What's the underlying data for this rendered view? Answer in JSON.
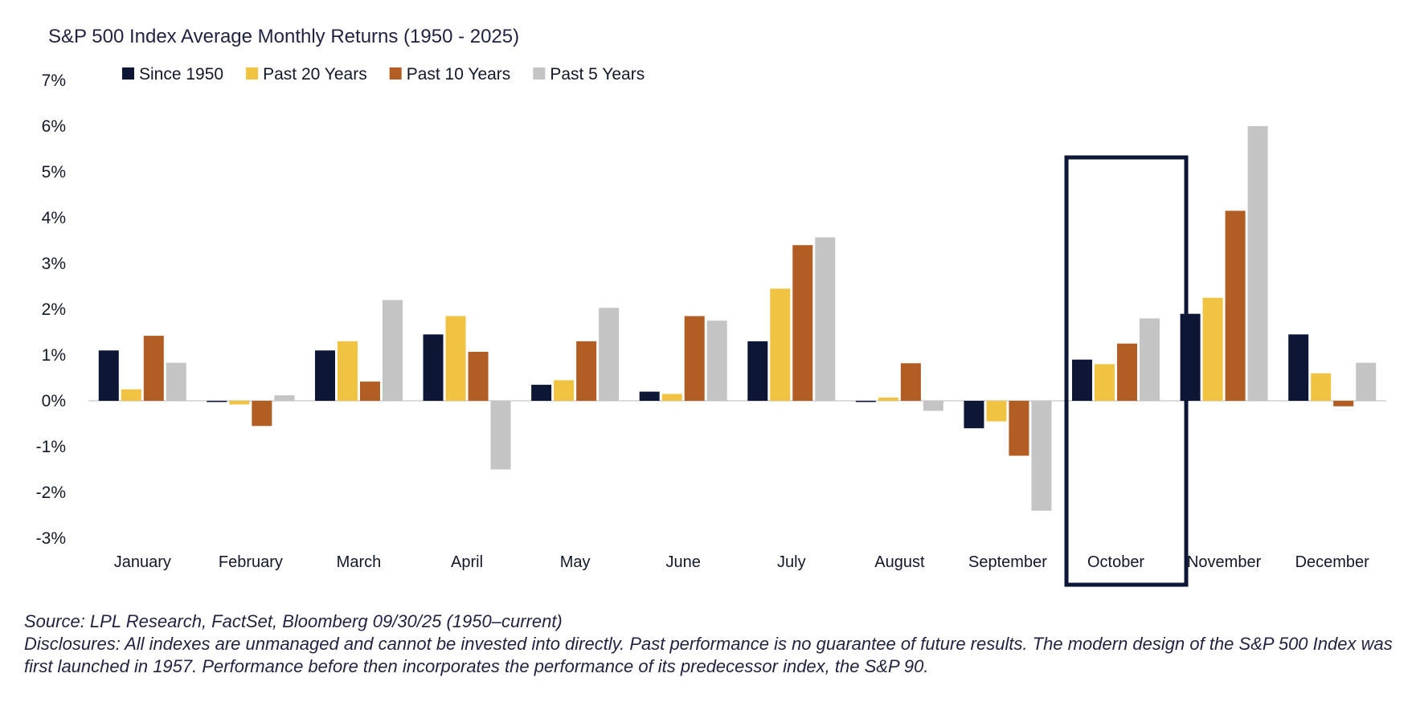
{
  "chart_data": {
    "type": "bar",
    "title": "S&P 500 Index Average Monthly Returns (1950 - 2025)",
    "xlabel": "",
    "ylabel": "",
    "ylim": [
      -3,
      7
    ],
    "y_ticks": [
      "7%",
      "6%",
      "5%",
      "4%",
      "3%",
      "2%",
      "1%",
      "0%",
      "-1%",
      "-2%",
      "-3%"
    ],
    "y_tick_values": [
      7,
      6,
      5,
      4,
      3,
      2,
      1,
      0,
      -1,
      -2,
      -3
    ],
    "categories": [
      "January",
      "February",
      "March",
      "April",
      "May",
      "June",
      "July",
      "August",
      "September",
      "October",
      "November",
      "December"
    ],
    "highlighted_category": "October",
    "legend_position": "top-left",
    "grid": false,
    "series": [
      {
        "name": "Since 1950",
        "color": "#0d1635",
        "values": [
          1.1,
          -0.02,
          1.1,
          1.45,
          0.35,
          0.2,
          1.3,
          -0.02,
          -0.6,
          0.9,
          1.9,
          1.45
        ]
      },
      {
        "name": "Past 20 Years",
        "color": "#f1c342",
        "values": [
          0.25,
          -0.08,
          1.3,
          1.85,
          0.45,
          0.15,
          2.45,
          0.07,
          -0.45,
          0.8,
          2.25,
          0.6
        ]
      },
      {
        "name": "Past 10 Years",
        "color": "#b15d23",
        "values": [
          1.42,
          -0.55,
          0.42,
          1.07,
          1.3,
          1.85,
          3.4,
          0.82,
          -1.2,
          1.25,
          4.15,
          -0.12
        ]
      },
      {
        "name": "Past 5 Years",
        "color": "#c4c4c4",
        "values": [
          0.83,
          0.12,
          2.2,
          -1.5,
          2.03,
          1.75,
          3.57,
          -0.22,
          -2.4,
          1.8,
          6.0,
          0.83
        ]
      }
    ]
  },
  "footnotes": {
    "source": "Source: LPL Research, FactSet, Bloomberg 09/30/25 (1950–current)",
    "disclosures": "Disclosures: All indexes are unmanaged and cannot be invested into directly. Past performance is no guarantee of future results. The modern design of the S&P 500 Index was first launched in 1957. Performance before then incorporates the performance of its predecessor index, the S&P 90."
  }
}
